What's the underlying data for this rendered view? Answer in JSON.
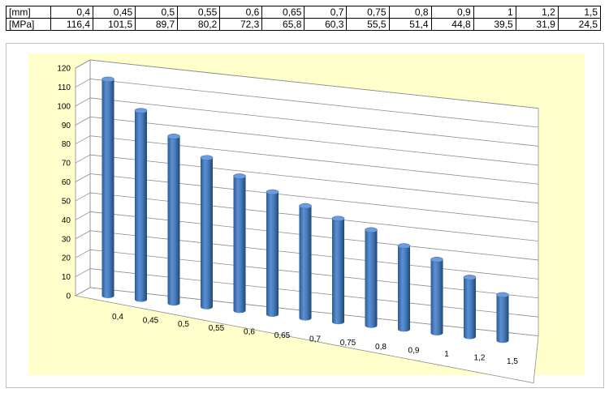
{
  "table": {
    "row_labels": [
      "[mm]",
      "[MPa]"
    ],
    "thickness": [
      "0,4",
      "0,45",
      "0,5",
      "0,55",
      "0,6",
      "0,65",
      "0,7",
      "0,75",
      "0,8",
      "0,9",
      "1",
      "1,2",
      "1,5"
    ],
    "stress": [
      "116,4",
      "101,5",
      "89,7",
      "80,2",
      "72,3",
      "65,8",
      "60,3",
      "55,5",
      "51,4",
      "44,8",
      "39,5",
      "31,9",
      "24,5"
    ]
  },
  "chart_data": {
    "type": "bar",
    "style": "3d-cylinder",
    "categories": [
      "0,4",
      "0,45",
      "0,5",
      "0,55",
      "0,6",
      "0,65",
      "0,7",
      "0,75",
      "0,8",
      "0,9",
      "1",
      "1,2",
      "1,5"
    ],
    "values": [
      116.4,
      101.5,
      89.7,
      80.2,
      72.3,
      65.8,
      60.3,
      55.5,
      51.4,
      44.8,
      39.5,
      31.9,
      24.5
    ],
    "ylim": [
      0,
      120
    ],
    "yticks": [
      0,
      10,
      20,
      30,
      40,
      50,
      60,
      70,
      80,
      90,
      100,
      110,
      120
    ],
    "grid": true,
    "legend": "none",
    "colors": {
      "bar": "#4a7ebb",
      "plot_area": "#ffffcc",
      "wall": "#ffffff"
    }
  }
}
